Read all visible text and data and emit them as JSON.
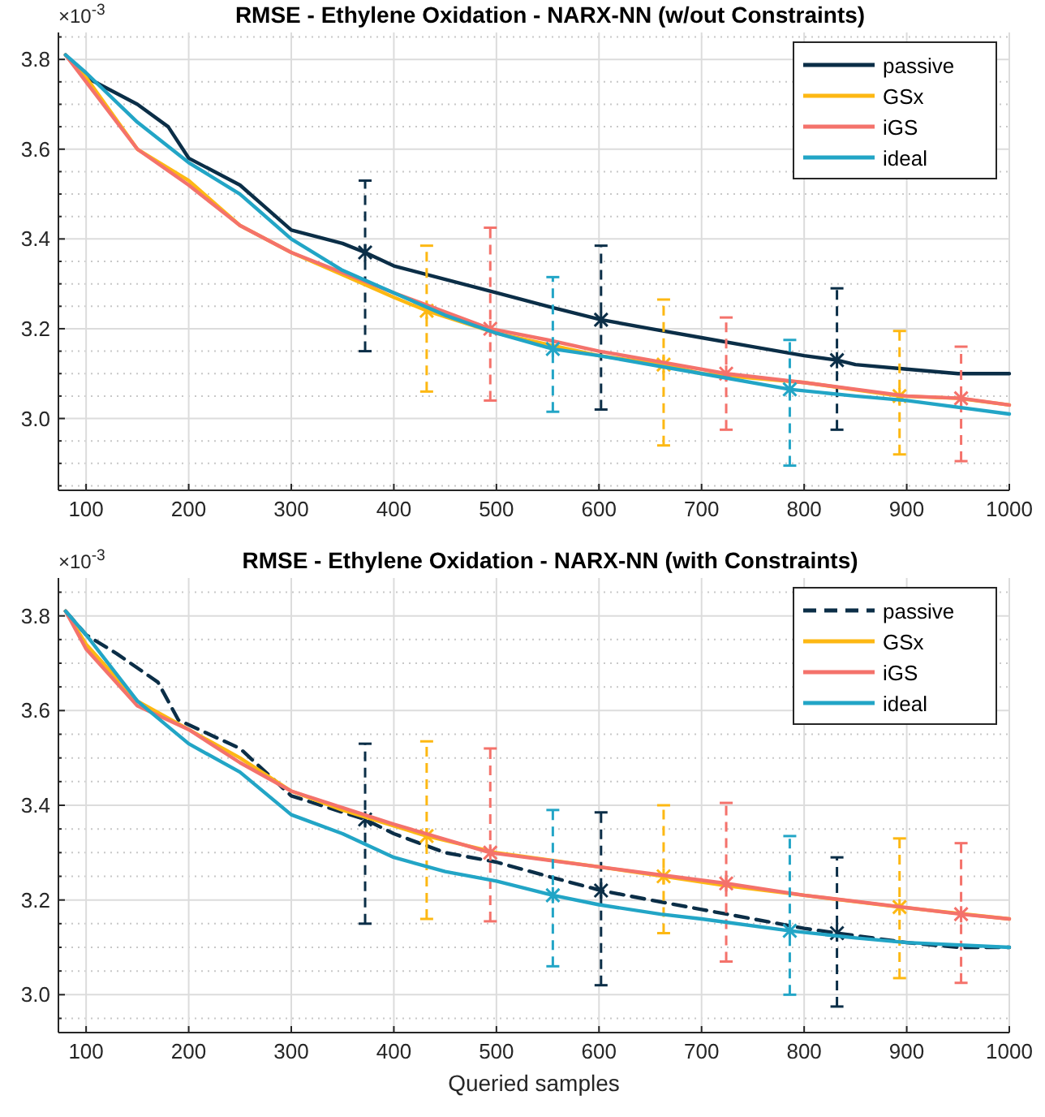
{
  "chart_data": [
    {
      "type": "line",
      "title": "RMSE - Ethylene Oxidation - NARX-NN (w/out Constraints)",
      "annotations": [
        "×10$^{-3}$"
      ],
      "xlim": [
        73,
        1000
      ],
      "xticks": [
        100,
        200,
        300,
        400,
        500,
        600,
        700,
        800,
        900,
        1000
      ],
      "ylim": [
        2.84,
        3.86
      ],
      "yticks": [
        {
          "value": 2.85,
          "label": null
        },
        {
          "value": 2.9,
          "label": null
        },
        {
          "value": 2.95,
          "label": null
        },
        {
          "value": 3.0,
          "label": "3.0"
        },
        {
          "value": 3.05,
          "label": null
        },
        {
          "value": 3.1,
          "label": null
        },
        {
          "value": 3.15,
          "label": null
        },
        3.2,
        {
          "value": 3.25,
          "label": null
        },
        {
          "value": 3.3,
          "label": null
        },
        {
          "value": 3.35,
          "label": null
        },
        3.4,
        {
          "value": 3.45,
          "label": null
        },
        {
          "value": 3.5,
          "label": null
        },
        {
          "value": 3.55,
          "label": null
        },
        3.6,
        {
          "value": 3.65,
          "label": null
        },
        {
          "value": 3.7,
          "label": null
        },
        {
          "value": 3.75,
          "label": null
        },
        3.8,
        {
          "value": 3.85,
          "label": null
        }
      ],
      "grid": true,
      "legend": "top right",
      "marker": "none",
      "series": [
        {
          "name": "passive",
          "color": "#0b2e47",
          "line_style": "solid",
          "x": [
            80,
            100,
            150,
            180,
            200,
            250,
            300,
            350,
            372,
            400,
            450,
            500,
            550,
            602,
            650,
            700,
            750,
            800,
            832,
            850,
            900,
            950,
            1000
          ],
          "values": [
            3.81,
            3.76,
            3.7,
            3.65,
            3.58,
            3.52,
            3.42,
            3.39,
            3.37,
            3.34,
            3.31,
            3.28,
            3.25,
            3.22,
            3.2,
            3.18,
            3.16,
            3.14,
            3.13,
            3.12,
            3.11,
            3.1,
            3.1
          ],
          "errors": [
            null,
            null,
            null,
            null,
            null,
            null,
            null,
            null,
            [
              3.15,
              3.53
            ],
            null,
            null,
            null,
            null,
            [
              3.02,
              3.385
            ],
            null,
            null,
            null,
            null,
            [
              2.975,
              3.29
            ],
            null,
            null,
            null,
            null
          ]
        },
        {
          "name": "GSx",
          "color": "#fdb813",
          "line_style": "solid",
          "x": [
            80,
            100,
            150,
            200,
            250,
            300,
            350,
            400,
            432,
            500,
            600,
            663,
            700,
            800,
            893,
            950,
            1000
          ],
          "values": [
            3.81,
            3.76,
            3.6,
            3.53,
            3.43,
            3.37,
            3.32,
            3.27,
            3.24,
            3.19,
            3.14,
            3.12,
            3.1,
            3.08,
            3.05,
            3.045,
            3.03
          ],
          "errors": [
            null,
            null,
            null,
            null,
            null,
            null,
            null,
            null,
            [
              3.06,
              3.385
            ],
            null,
            null,
            [
              2.94,
              3.265
            ],
            null,
            null,
            [
              2.92,
              3.195
            ],
            null,
            null
          ]
        },
        {
          "name": "iGS",
          "color": "#f4726b",
          "line_style": "solid",
          "x": [
            80,
            100,
            150,
            200,
            250,
            300,
            400,
            494,
            550,
            600,
            650,
            724,
            800,
            900,
            953,
            1000
          ],
          "values": [
            3.81,
            3.75,
            3.6,
            3.52,
            3.43,
            3.37,
            3.28,
            3.2,
            3.175,
            3.15,
            3.13,
            3.1,
            3.08,
            3.05,
            3.045,
            3.03
          ],
          "errors": [
            null,
            null,
            null,
            null,
            null,
            null,
            null,
            [
              3.04,
              3.425
            ],
            null,
            null,
            null,
            [
              2.975,
              3.225
            ],
            null,
            null,
            [
              2.905,
              3.16
            ],
            null
          ]
        },
        {
          "name": "ideal",
          "color": "#22a5c6",
          "line_style": "solid",
          "x": [
            80,
            100,
            150,
            200,
            250,
            300,
            350,
            400,
            450,
            500,
            555,
            600,
            700,
            786,
            850,
            900,
            1000
          ],
          "values": [
            3.81,
            3.77,
            3.66,
            3.57,
            3.5,
            3.4,
            3.33,
            3.28,
            3.23,
            3.19,
            3.155,
            3.14,
            3.1,
            3.065,
            3.05,
            3.04,
            3.01
          ],
          "errors": [
            null,
            null,
            null,
            null,
            null,
            null,
            null,
            null,
            null,
            null,
            [
              3.015,
              3.315
            ],
            null,
            null,
            [
              2.895,
              3.175
            ],
            null,
            null,
            null
          ]
        }
      ]
    },
    {
      "type": "line",
      "title": "RMSE - Ethylene Oxidation - NARX-NN (with Constraints)",
      "xlabel": "Queried samples",
      "annotations": [
        "×10$^{-3}$"
      ],
      "xlim": [
        73,
        1000
      ],
      "xticks": [
        100,
        200,
        300,
        400,
        500,
        600,
        700,
        800,
        900,
        1000
      ],
      "ylim": [
        2.92,
        3.88
      ],
      "yticks": [
        {
          "value": 2.95,
          "label": null
        },
        {
          "value": 3.0,
          "label": "3.0"
        },
        {
          "value": 3.05,
          "label": null
        },
        {
          "value": 3.1,
          "label": null
        },
        {
          "value": 3.15,
          "label": null
        },
        3.2,
        {
          "value": 3.25,
          "label": null
        },
        {
          "value": 3.3,
          "label": null
        },
        {
          "value": 3.35,
          "label": null
        },
        3.4,
        {
          "value": 3.45,
          "label": null
        },
        {
          "value": 3.5,
          "label": null
        },
        {
          "value": 3.55,
          "label": null
        },
        3.6,
        {
          "value": 3.65,
          "label": null
        },
        {
          "value": 3.7,
          "label": null
        },
        {
          "value": 3.75,
          "label": null
        },
        3.8,
        {
          "value": 3.85,
          "label": null
        }
      ],
      "grid": true,
      "legend": "top right",
      "marker": "none",
      "series": [
        {
          "name": "passive",
          "color": "#0b2e47",
          "line_style": "dashed",
          "x": [
            80,
            100,
            130,
            170,
            190,
            250,
            300,
            372,
            400,
            450,
            500,
            550,
            602,
            650,
            700,
            750,
            800,
            832,
            900,
            950,
            1000
          ],
          "values": [
            3.81,
            3.76,
            3.72,
            3.66,
            3.58,
            3.52,
            3.42,
            3.37,
            3.34,
            3.3,
            3.28,
            3.25,
            3.22,
            3.2,
            3.18,
            3.16,
            3.14,
            3.13,
            3.11,
            3.1,
            3.1
          ],
          "errors": [
            null,
            null,
            null,
            null,
            null,
            null,
            null,
            [
              3.15,
              3.53
            ],
            null,
            null,
            null,
            null,
            [
              3.02,
              3.385
            ],
            null,
            null,
            null,
            null,
            [
              2.975,
              3.29
            ],
            null,
            null,
            null
          ]
        },
        {
          "name": "GSx",
          "color": "#fdb813",
          "line_style": "solid",
          "x": [
            80,
            100,
            150,
            200,
            250,
            300,
            350,
            432,
            500,
            600,
            663,
            724,
            800,
            893,
            1000
          ],
          "values": [
            3.81,
            3.74,
            3.62,
            3.56,
            3.5,
            3.43,
            3.39,
            3.335,
            3.3,
            3.27,
            3.25,
            3.23,
            3.21,
            3.185,
            3.16
          ],
          "errors": [
            null,
            null,
            null,
            null,
            null,
            null,
            null,
            [
              3.16,
              3.535
            ],
            null,
            null,
            [
              3.13,
              3.4
            ],
            null,
            null,
            [
              3.035,
              3.33
            ],
            null
          ]
        },
        {
          "name": "iGS",
          "color": "#f4726b",
          "line_style": "solid",
          "x": [
            80,
            100,
            150,
            200,
            250,
            300,
            400,
            494,
            600,
            724,
            800,
            953,
            1000
          ],
          "values": [
            3.81,
            3.73,
            3.61,
            3.56,
            3.49,
            3.43,
            3.36,
            3.3,
            3.27,
            3.235,
            3.21,
            3.17,
            3.16
          ],
          "errors": [
            null,
            null,
            null,
            null,
            null,
            null,
            null,
            [
              3.155,
              3.52
            ],
            null,
            [
              3.07,
              3.405
            ],
            null,
            [
              3.025,
              3.32
            ],
            null
          ]
        },
        {
          "name": "ideal",
          "color": "#22a5c6",
          "line_style": "solid",
          "x": [
            80,
            100,
            150,
            200,
            250,
            300,
            350,
            400,
            450,
            500,
            555,
            600,
            660,
            700,
            786,
            850,
            900,
            1000
          ],
          "values": [
            3.81,
            3.76,
            3.62,
            3.53,
            3.47,
            3.38,
            3.34,
            3.29,
            3.26,
            3.24,
            3.21,
            3.19,
            3.17,
            3.16,
            3.135,
            3.12,
            3.11,
            3.1
          ],
          "errors": [
            null,
            null,
            null,
            null,
            null,
            null,
            null,
            null,
            null,
            null,
            [
              3.06,
              3.39
            ],
            null,
            null,
            null,
            [
              3.0,
              3.335
            ],
            null,
            null,
            null
          ]
        }
      ]
    }
  ]
}
